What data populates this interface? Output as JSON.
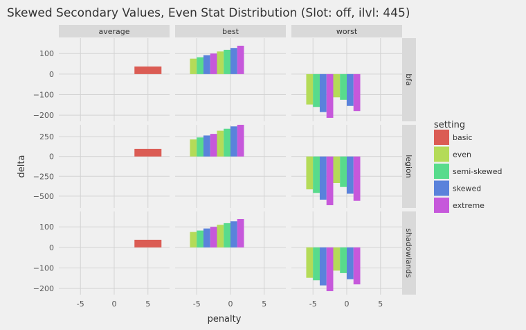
{
  "chart_data": {
    "type": "bar",
    "title": "Skewed Secondary Values, Even Stat Distribution (Slot: off, ilvl: 445)",
    "xlabel": "penalty",
    "ylabel": "delta",
    "facet_columns": [
      "average",
      "best",
      "worst"
    ],
    "facet_rows": [
      "bfa",
      "legion",
      "shadowlands"
    ],
    "x_ticks": [
      "-5",
      "0",
      "5"
    ],
    "xlim": [
      -8.2,
      8.2
    ],
    "legend": {
      "title": "setting",
      "entries": [
        {
          "name": "basic",
          "color": "#db5c54"
        },
        {
          "name": "even",
          "color": "#b4db58"
        },
        {
          "name": "semi-skewed",
          "color": "#58db8c"
        },
        {
          "name": "skewed",
          "color": "#5a82db"
        },
        {
          "name": "extreme",
          "color": "#c658db"
        }
      ]
    },
    "rows": [
      {
        "name": "bfa",
        "ylim": [
          -230,
          175
        ],
        "y_ticks": [
          100,
          0,
          -100,
          -200
        ],
        "y_tick_labels": [
          "100",
          "0",
          "−100",
          "−200"
        ],
        "panels": {
          "average": [
            {
              "x": 5,
              "values": {
                "basic": 37
              }
            }
          ],
          "best": [
            {
              "x": -4,
              "values": {
                "even": 75,
                "semi-skewed": 82,
                "skewed": 92,
                "extreme": 100
              }
            },
            {
              "x": 0,
              "values": {
                "even": 110,
                "semi-skewed": 118,
                "skewed": 127,
                "extreme": 138
              }
            }
          ],
          "worst": [
            {
              "x": -4,
              "values": {
                "even": -148,
                "semi-skewed": -160,
                "skewed": -185,
                "extreme": -213
              }
            },
            {
              "x": 0,
              "values": {
                "even": -113,
                "semi-skewed": -125,
                "skewed": -155,
                "extreme": -180
              }
            }
          ]
        }
      },
      {
        "name": "legion",
        "ylim": [
          -650,
          400
        ],
        "y_ticks": [
          250,
          0,
          -250,
          -500
        ],
        "y_tick_labels": [
          "250",
          "0",
          "−250",
          "−500"
        ],
        "panels": {
          "average": [
            {
              "x": 5,
              "values": {
                "basic": 95
              }
            }
          ],
          "best": [
            {
              "x": -4,
              "values": {
                "even": 215,
                "semi-skewed": 240,
                "skewed": 265,
                "extreme": 285
              }
            },
            {
              "x": 0,
              "values": {
                "even": 325,
                "semi-skewed": 350,
                "skewed": 380,
                "extreme": 400
              }
            }
          ],
          "worst": [
            {
              "x": -4,
              "values": {
                "even": -415,
                "semi-skewed": -460,
                "skewed": -545,
                "extreme": -615
              }
            },
            {
              "x": 0,
              "values": {
                "even": -335,
                "semi-skewed": -385,
                "skewed": -470,
                "extreme": -560
              }
            }
          ]
        }
      },
      {
        "name": "shadowlands",
        "ylim": [
          -230,
          175
        ],
        "y_ticks": [
          100,
          0,
          -100,
          -200
        ],
        "y_tick_labels": [
          "100",
          "0",
          "−100",
          "−200"
        ],
        "panels": {
          "average": [
            {
              "x": 5,
              "values": {
                "basic": 37
              }
            }
          ],
          "best": [
            {
              "x": -4,
              "values": {
                "even": 75,
                "semi-skewed": 82,
                "skewed": 92,
                "extreme": 100
              }
            },
            {
              "x": 0,
              "values": {
                "even": 110,
                "semi-skewed": 118,
                "skewed": 127,
                "extreme": 138
              }
            }
          ],
          "worst": [
            {
              "x": -4,
              "values": {
                "even": -148,
                "semi-skewed": -160,
                "skewed": -185,
                "extreme": -213
              }
            },
            {
              "x": 0,
              "values": {
                "even": -113,
                "semi-skewed": -125,
                "skewed": -155,
                "extreme": -180
              }
            }
          ]
        }
      }
    ],
    "grid": true,
    "legend_position": "right"
  }
}
